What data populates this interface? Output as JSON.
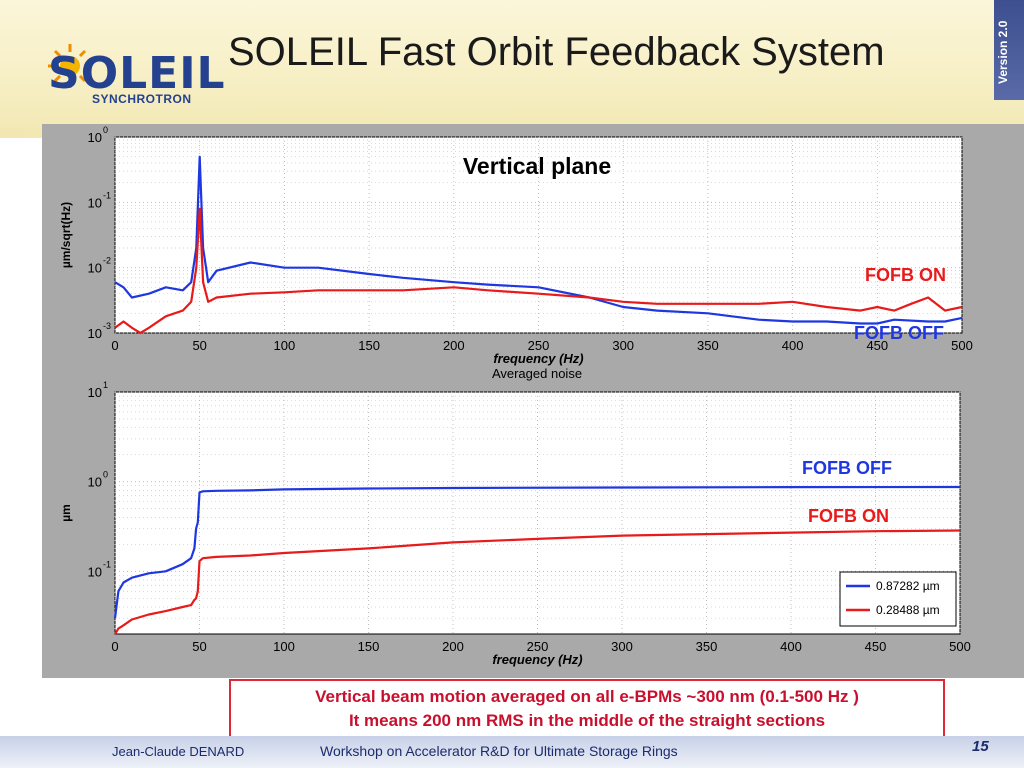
{
  "header": {
    "title": "SOLEIL Fast Orbit Feedback System",
    "version": "Version 2.0",
    "logo_text": "SOLEIL",
    "logo_sub": "SYNCHROTRON"
  },
  "chart_data": [
    {
      "type": "line",
      "title": "Vertical plane",
      "xlabel": "frequency (Hz)",
      "ylabel": "µm/sqrt(Hz)",
      "xlim": [
        0,
        500
      ],
      "ylim": [
        0.001,
        1
      ],
      "yscale": "log",
      "xticks": [
        0,
        50,
        100,
        150,
        200,
        250,
        300,
        350,
        400,
        450,
        500
      ],
      "yticks": [
        {
          "base": "10",
          "exp": "0",
          "value": 1
        },
        {
          "base": "10",
          "exp": "-1",
          "value": 0.1
        },
        {
          "base": "10",
          "exp": "-2",
          "value": 0.01
        },
        {
          "base": "10",
          "exp": "-3",
          "value": 0.001
        }
      ],
      "grid": true,
      "series": [
        {
          "name": "FOFB OFF",
          "color": "#1f37e0",
          "x": [
            0,
            5,
            10,
            20,
            30,
            40,
            45,
            48,
            50,
            52,
            55,
            60,
            80,
            100,
            120,
            150,
            170,
            200,
            220,
            250,
            280,
            300,
            320,
            350,
            380,
            400,
            420,
            440,
            450,
            460,
            480,
            490,
            500
          ],
          "y": [
            0.006,
            0.005,
            0.0035,
            0.004,
            0.005,
            0.0045,
            0.006,
            0.02,
            0.5,
            0.02,
            0.006,
            0.009,
            0.012,
            0.01,
            0.01,
            0.008,
            0.007,
            0.006,
            0.0055,
            0.005,
            0.0035,
            0.0025,
            0.0022,
            0.002,
            0.0016,
            0.0015,
            0.0015,
            0.0014,
            0.0014,
            0.0016,
            0.0015,
            0.0015,
            0.0017
          ]
        },
        {
          "name": "FOFB ON",
          "color": "#e81a1a",
          "x": [
            0,
            5,
            10,
            15,
            20,
            30,
            40,
            45,
            48,
            50,
            52,
            55,
            60,
            80,
            100,
            120,
            150,
            170,
            200,
            220,
            250,
            280,
            300,
            320,
            350,
            380,
            400,
            420,
            440,
            450,
            460,
            470,
            480,
            490,
            500
          ],
          "y": [
            0.0012,
            0.0015,
            0.0012,
            0.001,
            0.0012,
            0.0018,
            0.0022,
            0.003,
            0.01,
            0.08,
            0.006,
            0.003,
            0.0035,
            0.004,
            0.0042,
            0.0045,
            0.0045,
            0.0045,
            0.005,
            0.0045,
            0.004,
            0.0035,
            0.003,
            0.0028,
            0.0028,
            0.0028,
            0.003,
            0.0025,
            0.0022,
            0.0025,
            0.0022,
            0.0028,
            0.0035,
            0.0022,
            0.0025
          ]
        }
      ],
      "annotations": [
        {
          "text": "FOFB ON",
          "color": "#e81a1a"
        },
        {
          "text": "FOFB OFF",
          "color": "#1f37e0"
        }
      ]
    },
    {
      "type": "line",
      "title": "Averaged noise",
      "xlabel": "frequency (Hz)",
      "ylabel": "µm",
      "xlim": [
        0,
        500
      ],
      "ylim": [
        0.02,
        10
      ],
      "yscale": "log",
      "xticks": [
        0,
        50,
        100,
        150,
        200,
        250,
        300,
        350,
        400,
        450,
        500
      ],
      "yticks": [
        {
          "base": "10",
          "exp": "1",
          "value": 10
        },
        {
          "base": "10",
          "exp": "0",
          "value": 1
        },
        {
          "base": "10",
          "exp": "-1",
          "value": 0.1
        }
      ],
      "grid": true,
      "legend_position": "bottom-right",
      "series": [
        {
          "name": "0.87282 µm",
          "color": "#1f37e0",
          "x": [
            0,
            2,
            5,
            10,
            20,
            30,
            40,
            45,
            47,
            48,
            49,
            50,
            52,
            60,
            80,
            100,
            150,
            200,
            300,
            400,
            500
          ],
          "y": [
            0.03,
            0.06,
            0.075,
            0.085,
            0.095,
            0.1,
            0.12,
            0.14,
            0.18,
            0.3,
            0.35,
            0.76,
            0.78,
            0.79,
            0.8,
            0.82,
            0.84,
            0.85,
            0.86,
            0.87,
            0.873
          ]
        },
        {
          "name": "0.28488 µm",
          "color": "#e81a1a",
          "x": [
            0,
            2,
            5,
            10,
            20,
            30,
            40,
            45,
            47,
            48,
            49,
            50,
            52,
            60,
            80,
            100,
            150,
            200,
            250,
            300,
            350,
            400,
            450,
            500
          ],
          "y": [
            0.02,
            0.023,
            0.025,
            0.029,
            0.033,
            0.036,
            0.04,
            0.042,
            0.048,
            0.05,
            0.06,
            0.13,
            0.14,
            0.145,
            0.15,
            0.16,
            0.18,
            0.21,
            0.23,
            0.25,
            0.26,
            0.27,
            0.28,
            0.285
          ]
        }
      ],
      "annotations": [
        {
          "text": "FOFB OFF",
          "color": "#1f37e0"
        },
        {
          "text": "FOFB ON",
          "color": "#e81a1a"
        }
      ]
    }
  ],
  "caption": {
    "line1": "Vertical beam motion averaged on all e-BPMs ~300 nm (0.1-500 Hz )",
    "line2": "It means 200 nm RMS in the middle of the straight sections"
  },
  "footer": {
    "author": "Jean-Claude DENARD",
    "event": "Workshop on Accelerator R&D for Ultimate Storage Rings",
    "page": "15"
  }
}
